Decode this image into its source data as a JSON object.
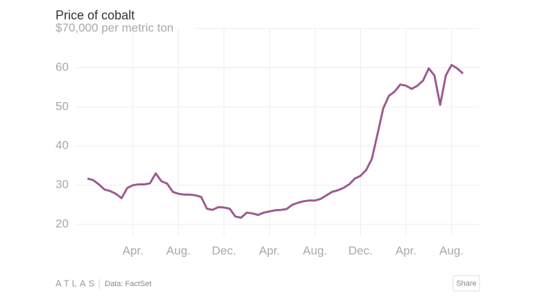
{
  "chart_data": {
    "type": "line",
    "title": "Price of cobalt",
    "categories": [
      null,
      null,
      null,
      null,
      null,
      null,
      null,
      null,
      "Apr.",
      null,
      null,
      null,
      null,
      null,
      null,
      null,
      "Aug.",
      null,
      null,
      null,
      null,
      null,
      null,
      null,
      "Dec.",
      null,
      null,
      null,
      null,
      null,
      null,
      null,
      "Apr.",
      null,
      null,
      null,
      null,
      null,
      null,
      null,
      "Aug.",
      null,
      null,
      null,
      null,
      null,
      null,
      null,
      "Dec.",
      null,
      null,
      null,
      null,
      null,
      null,
      null,
      "Apr.",
      null,
      null,
      null,
      null,
      null,
      null,
      null,
      "Aug.",
      null,
      null
    ],
    "values": [
      31.7,
      31.3,
      30.2,
      28.9,
      28.5,
      27.8,
      26.7,
      29.3,
      30,
      30.2,
      30.2,
      30.5,
      33,
      31,
      30.4,
      28.3,
      27.8,
      27.6,
      27.6,
      27.4,
      27,
      24,
      23.7,
      24.4,
      24.3,
      24,
      22,
      21.7,
      23,
      22.8,
      22.4,
      23,
      23.3,
      23.6,
      23.7,
      23.9,
      25,
      25.5,
      25.9,
      26.1,
      26.1,
      26.5,
      27.4,
      28.3,
      28.7,
      29.3,
      30.2,
      31.7,
      32.4,
      33.9,
      36.7,
      43.1,
      49.6,
      52.8,
      53.9,
      55.7,
      55.4,
      54.6,
      55.4,
      56.7,
      59.8,
      58,
      50.5,
      58,
      60.7,
      59.8,
      58.5
    ],
    "color": "#9c5a8e",
    "ylim": [
      17,
      70
    ],
    "yticks": [
      20,
      30,
      40,
      50,
      60,
      {
        "value": 70,
        "label": "$70,000 per metric ton"
      }
    ],
    "grid": true
  },
  "footer": {
    "brand": "ATLAS",
    "source": "Data: FactSet",
    "share": "Share"
  }
}
